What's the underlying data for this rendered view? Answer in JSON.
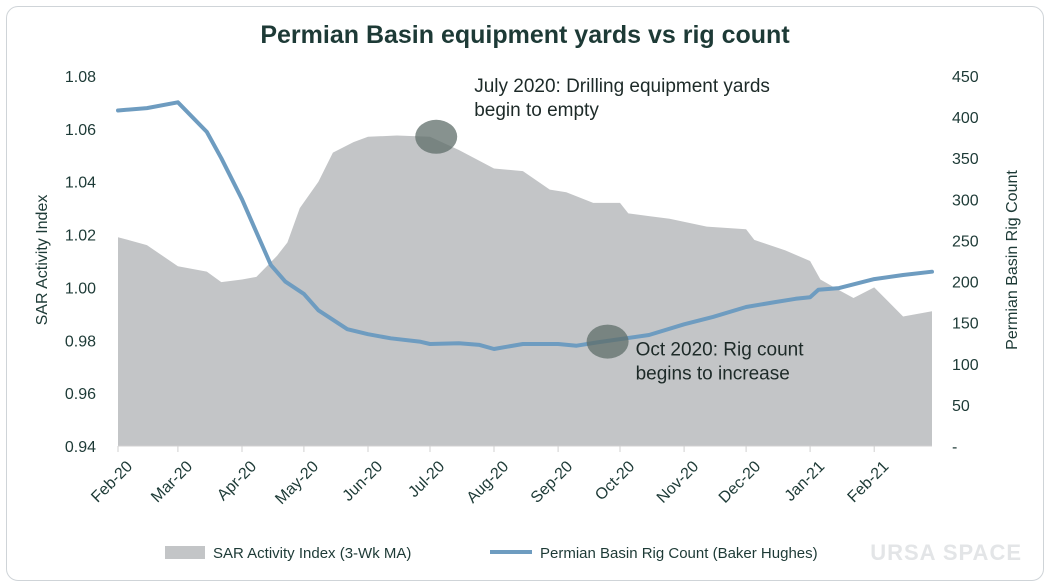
{
  "chart_data": {
    "type": "area+line",
    "title": "Permian Basin equipment yards vs rig count",
    "ylabel_left": "SAR Activity Index",
    "ylabel_right": "Permian Basin Rig Count",
    "ylim_left": [
      0.94,
      1.08
    ],
    "ylim_right": [
      0,
      450
    ],
    "yticks_left": [
      "0.94",
      "0.96",
      "0.98",
      "1.00",
      "1.02",
      "1.04",
      "1.06",
      "1.08"
    ],
    "yticks_right": [
      "-",
      "50",
      "100",
      "150",
      "200",
      "250",
      "300",
      "350",
      "400",
      "450"
    ],
    "x_start": "2020-02-01",
    "x_end": "2021-03-01",
    "xticks": [
      {
        "date": "2020-02-01",
        "label": "Feb-20"
      },
      {
        "date": "2020-03-01",
        "label": "Mar-20"
      },
      {
        "date": "2020-04-01",
        "label": "Apr-20"
      },
      {
        "date": "2020-05-01",
        "label": "May-20"
      },
      {
        "date": "2020-06-01",
        "label": "Jun-20"
      },
      {
        "date": "2020-07-01",
        "label": "Jul-20"
      },
      {
        "date": "2020-08-01",
        "label": "Aug-20"
      },
      {
        "date": "2020-09-01",
        "label": "Sep-20"
      },
      {
        "date": "2020-10-01",
        "label": "Oct-20"
      },
      {
        "date": "2020-11-01",
        "label": "Nov-20"
      },
      {
        "date": "2020-12-01",
        "label": "Dec-20"
      },
      {
        "date": "2021-01-01",
        "label": "Jan-21"
      },
      {
        "date": "2021-02-01",
        "label": "Feb-21"
      }
    ],
    "grid": false,
    "legend_position": "bottom",
    "series": [
      {
        "name": "SAR Activity Index (3-Wk MA)",
        "kind": "area",
        "axis": "left",
        "color": "#c3c5c7",
        "points": [
          [
            "2020-02-01",
            1.019
          ],
          [
            "2020-02-15",
            1.016
          ],
          [
            "2020-03-01",
            1.008
          ],
          [
            "2020-03-15",
            1.006
          ],
          [
            "2020-03-22",
            1.002
          ],
          [
            "2020-04-01",
            1.003
          ],
          [
            "2020-04-08",
            1.004
          ],
          [
            "2020-04-18",
            1.012
          ],
          [
            "2020-04-23",
            1.017
          ],
          [
            "2020-04-29",
            1.03
          ],
          [
            "2020-05-08",
            1.04
          ],
          [
            "2020-05-15",
            1.051
          ],
          [
            "2020-05-25",
            1.055
          ],
          [
            "2020-06-01",
            1.057
          ],
          [
            "2020-06-15",
            1.0575
          ],
          [
            "2020-07-01",
            1.057
          ],
          [
            "2020-07-15",
            1.052
          ],
          [
            "2020-08-01",
            1.045
          ],
          [
            "2020-08-15",
            1.044
          ],
          [
            "2020-08-28",
            1.037
          ],
          [
            "2020-09-05",
            1.036
          ],
          [
            "2020-09-18",
            1.032
          ],
          [
            "2020-10-01",
            1.032
          ],
          [
            "2020-10-05",
            1.028
          ],
          [
            "2020-10-15",
            1.027
          ],
          [
            "2020-10-25",
            1.026
          ],
          [
            "2020-11-12",
            1.023
          ],
          [
            "2020-12-01",
            1.022
          ],
          [
            "2020-12-05",
            1.018
          ],
          [
            "2020-12-20",
            1.014
          ],
          [
            "2021-01-01",
            1.01
          ],
          [
            "2021-01-06",
            1.003
          ],
          [
            "2021-01-15",
            0.999
          ],
          [
            "2021-01-22",
            0.996
          ],
          [
            "2021-02-01",
            1.0
          ],
          [
            "2021-02-15",
            0.989
          ],
          [
            "2021-02-22",
            0.99
          ],
          [
            "2021-03-01",
            0.991
          ]
        ]
      },
      {
        "name": "Permian Basin Rig Count (Baker Hughes)",
        "kind": "line",
        "axis": "right",
        "color": "#6e9cc0",
        "points": [
          [
            "2020-02-01",
            408
          ],
          [
            "2020-02-15",
            411
          ],
          [
            "2020-03-01",
            418
          ],
          [
            "2020-03-15",
            382
          ],
          [
            "2020-03-22",
            350
          ],
          [
            "2020-04-01",
            300
          ],
          [
            "2020-04-08",
            260
          ],
          [
            "2020-04-15",
            220
          ],
          [
            "2020-04-22",
            200
          ],
          [
            "2020-05-01",
            185
          ],
          [
            "2020-05-08",
            165
          ],
          [
            "2020-05-22",
            142
          ],
          [
            "2020-06-01",
            136
          ],
          [
            "2020-06-12",
            131
          ],
          [
            "2020-06-26",
            127
          ],
          [
            "2020-07-01",
            124
          ],
          [
            "2020-07-15",
            125
          ],
          [
            "2020-07-25",
            123
          ],
          [
            "2020-08-01",
            118
          ],
          [
            "2020-08-15",
            124
          ],
          [
            "2020-09-01",
            124
          ],
          [
            "2020-09-10",
            122
          ],
          [
            "2020-09-20",
            126
          ],
          [
            "2020-10-01",
            130
          ],
          [
            "2020-10-15",
            135
          ],
          [
            "2020-11-01",
            148
          ],
          [
            "2020-11-15",
            157
          ],
          [
            "2020-12-01",
            169
          ],
          [
            "2020-12-15",
            175
          ],
          [
            "2020-12-25",
            179
          ],
          [
            "2021-01-01",
            181
          ],
          [
            "2021-01-05",
            190
          ],
          [
            "2021-01-15",
            192
          ],
          [
            "2021-02-01",
            203
          ],
          [
            "2021-02-15",
            208
          ],
          [
            "2021-03-01",
            212
          ]
        ]
      }
    ],
    "annotations": [
      {
        "date": "2020-07-04",
        "value": 1.057,
        "axis": "left",
        "lines": [
          "July 2020: Drilling equipment yards",
          "begin to empty"
        ]
      },
      {
        "date": "2020-09-25",
        "value": 0.9795,
        "axis": "left",
        "lines": [
          "Oct 2020: Rig count",
          "begins to increase"
        ]
      }
    ]
  },
  "watermark": {
    "text": "URSA SPACE"
  }
}
